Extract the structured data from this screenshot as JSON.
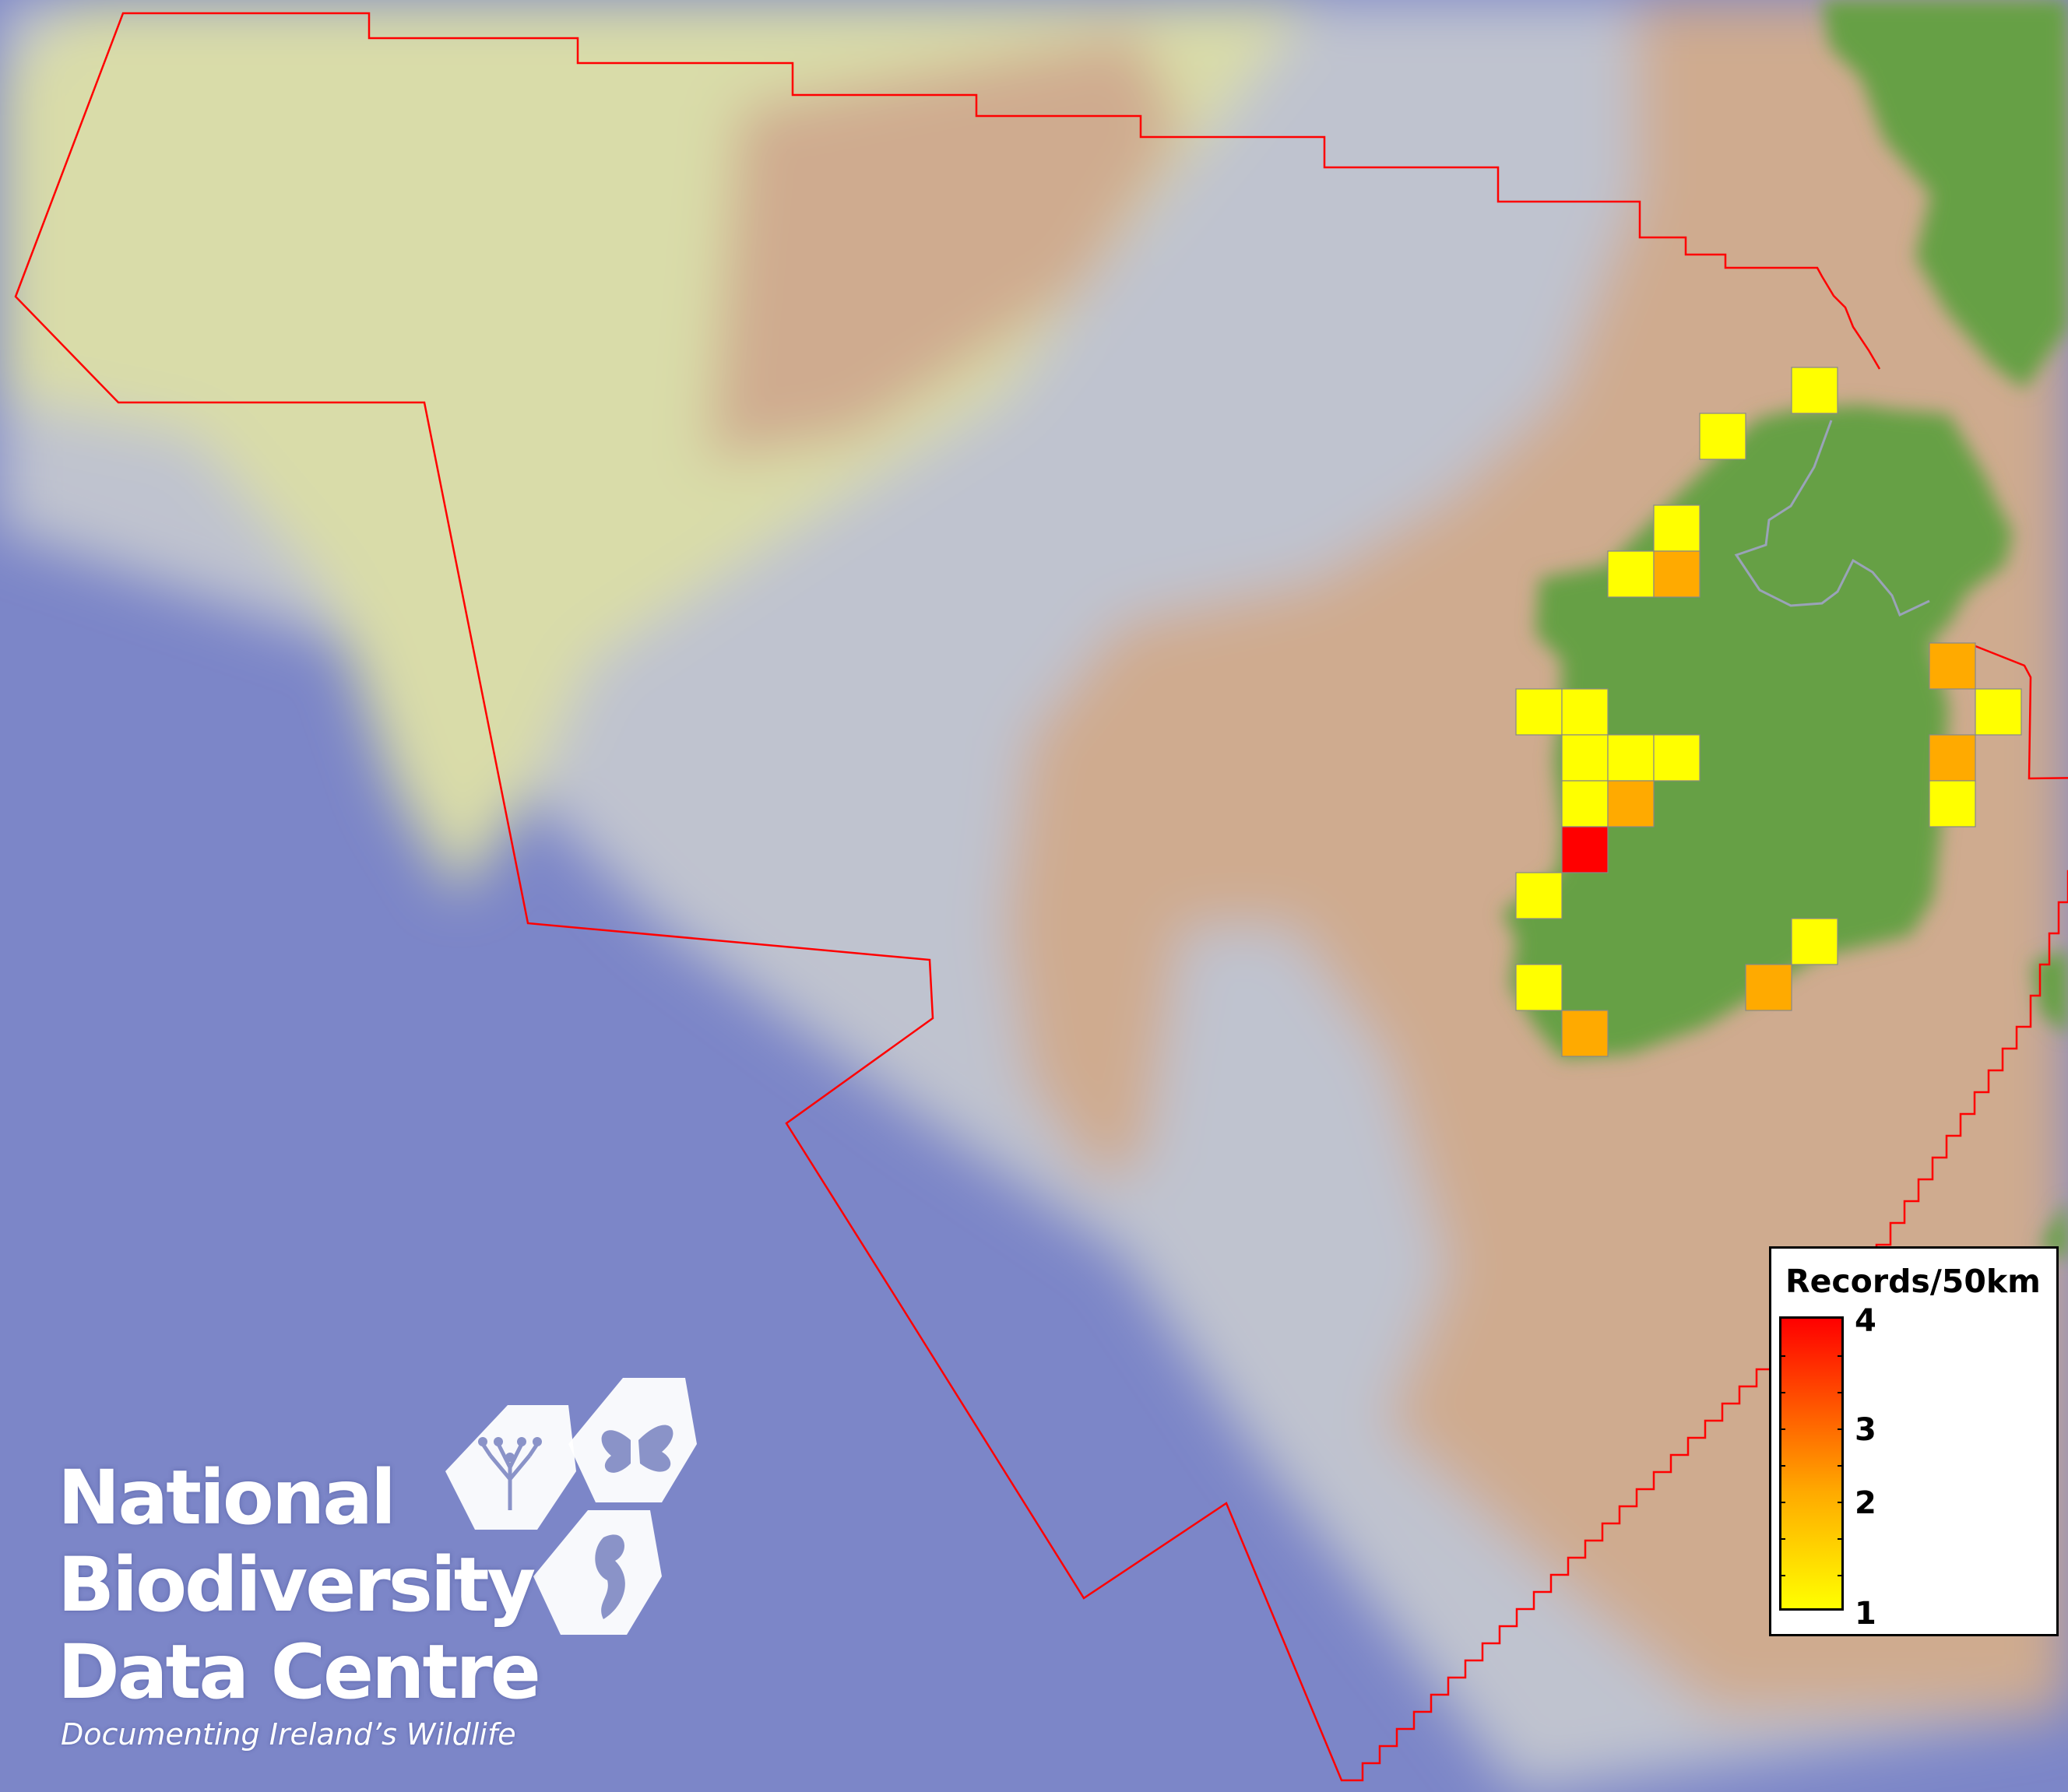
{
  "map": {
    "colors": {
      "deep_ocean": "#7c86c8",
      "shelf_slope": "#bfc3cf",
      "plateau": "#d9dca9",
      "shelf": "#cfab8f",
      "land": "#66a045",
      "boundary": "#ff0000",
      "cell_border": "#888888"
    },
    "cells": [
      1,
      1,
      1,
      1,
      2,
      2,
      1,
      1,
      1,
      1,
      1,
      1,
      2,
      1,
      2,
      1,
      4,
      1,
      1,
      1,
      2,
      2
    ]
  },
  "legend": {
    "title": "Records/50km",
    "min": 1,
    "max": 4,
    "colors": [
      "#ffff00",
      "#ffaa00",
      "#ff0000"
    ],
    "ticks": [
      {
        "label": "4"
      },
      {
        "label": "3"
      },
      {
        "label": "2"
      },
      {
        "label": "1"
      }
    ]
  },
  "logo": {
    "line1": "National",
    "line2": "Biodiversity",
    "line3": "Data Centre",
    "tagline": "Documenting Ireland’s Wildlife",
    "icons": [
      "tree-icon",
      "butterfly-icon",
      "seahorse-icon"
    ]
  }
}
